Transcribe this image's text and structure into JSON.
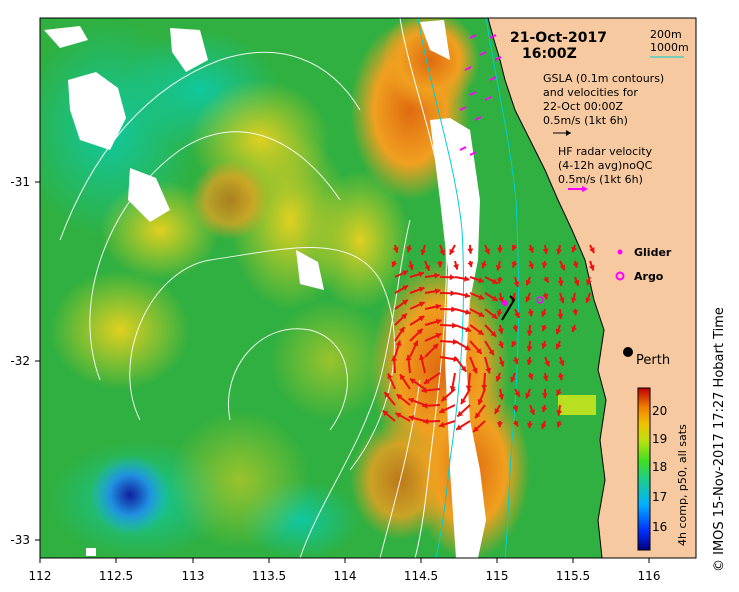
{
  "header": {
    "date": "21-Oct-2017",
    "time": "16:00Z"
  },
  "depth_legend": {
    "line1": "200m",
    "line2": "1000m",
    "line2_color": "#00c8c8"
  },
  "gsla_legend": {
    "lines": [
      "GSLA (0.1m contours)",
      "and velocities for",
      "22-Oct 00:00Z",
      "0.5m/s (1kt 6h)"
    ],
    "arrow_color": "#000000"
  },
  "hf_legend": {
    "lines": [
      "HF radar velocity",
      "(4-12h avg)noQC",
      "0.5m/s (1kt 6h)"
    ],
    "arrow_color": "#ff00ff"
  },
  "markers": {
    "glider_label": "Glider",
    "glider_color": "#ff00ff",
    "argo_label": "Argo",
    "argo_color": "#ff00ff",
    "city_label": "Perth"
  },
  "axes": {
    "x_ticks": [
      "112",
      "112.5",
      "113",
      "113.5",
      "114",
      "114.5",
      "115",
      "115.5",
      "116"
    ],
    "y_ticks": [
      "-31",
      "-32",
      "-33"
    ],
    "x_range": [
      112,
      116.3
    ],
    "y_range": [
      -33.1,
      -30.1
    ]
  },
  "colorbar": {
    "ticks": [
      "16",
      "17",
      "18",
      "19",
      "20"
    ],
    "range": [
      15.5,
      20.7
    ],
    "label": "4h comp, p50, all sats"
  },
  "credit": "© IMOS 15-Nov-2017 17:27 Hobart Time",
  "colors": {
    "land": "#f7c9a0",
    "cool": "#1f9e3a",
    "warm": "#e07a10",
    "hf_arrow": "#ee1111"
  }
}
